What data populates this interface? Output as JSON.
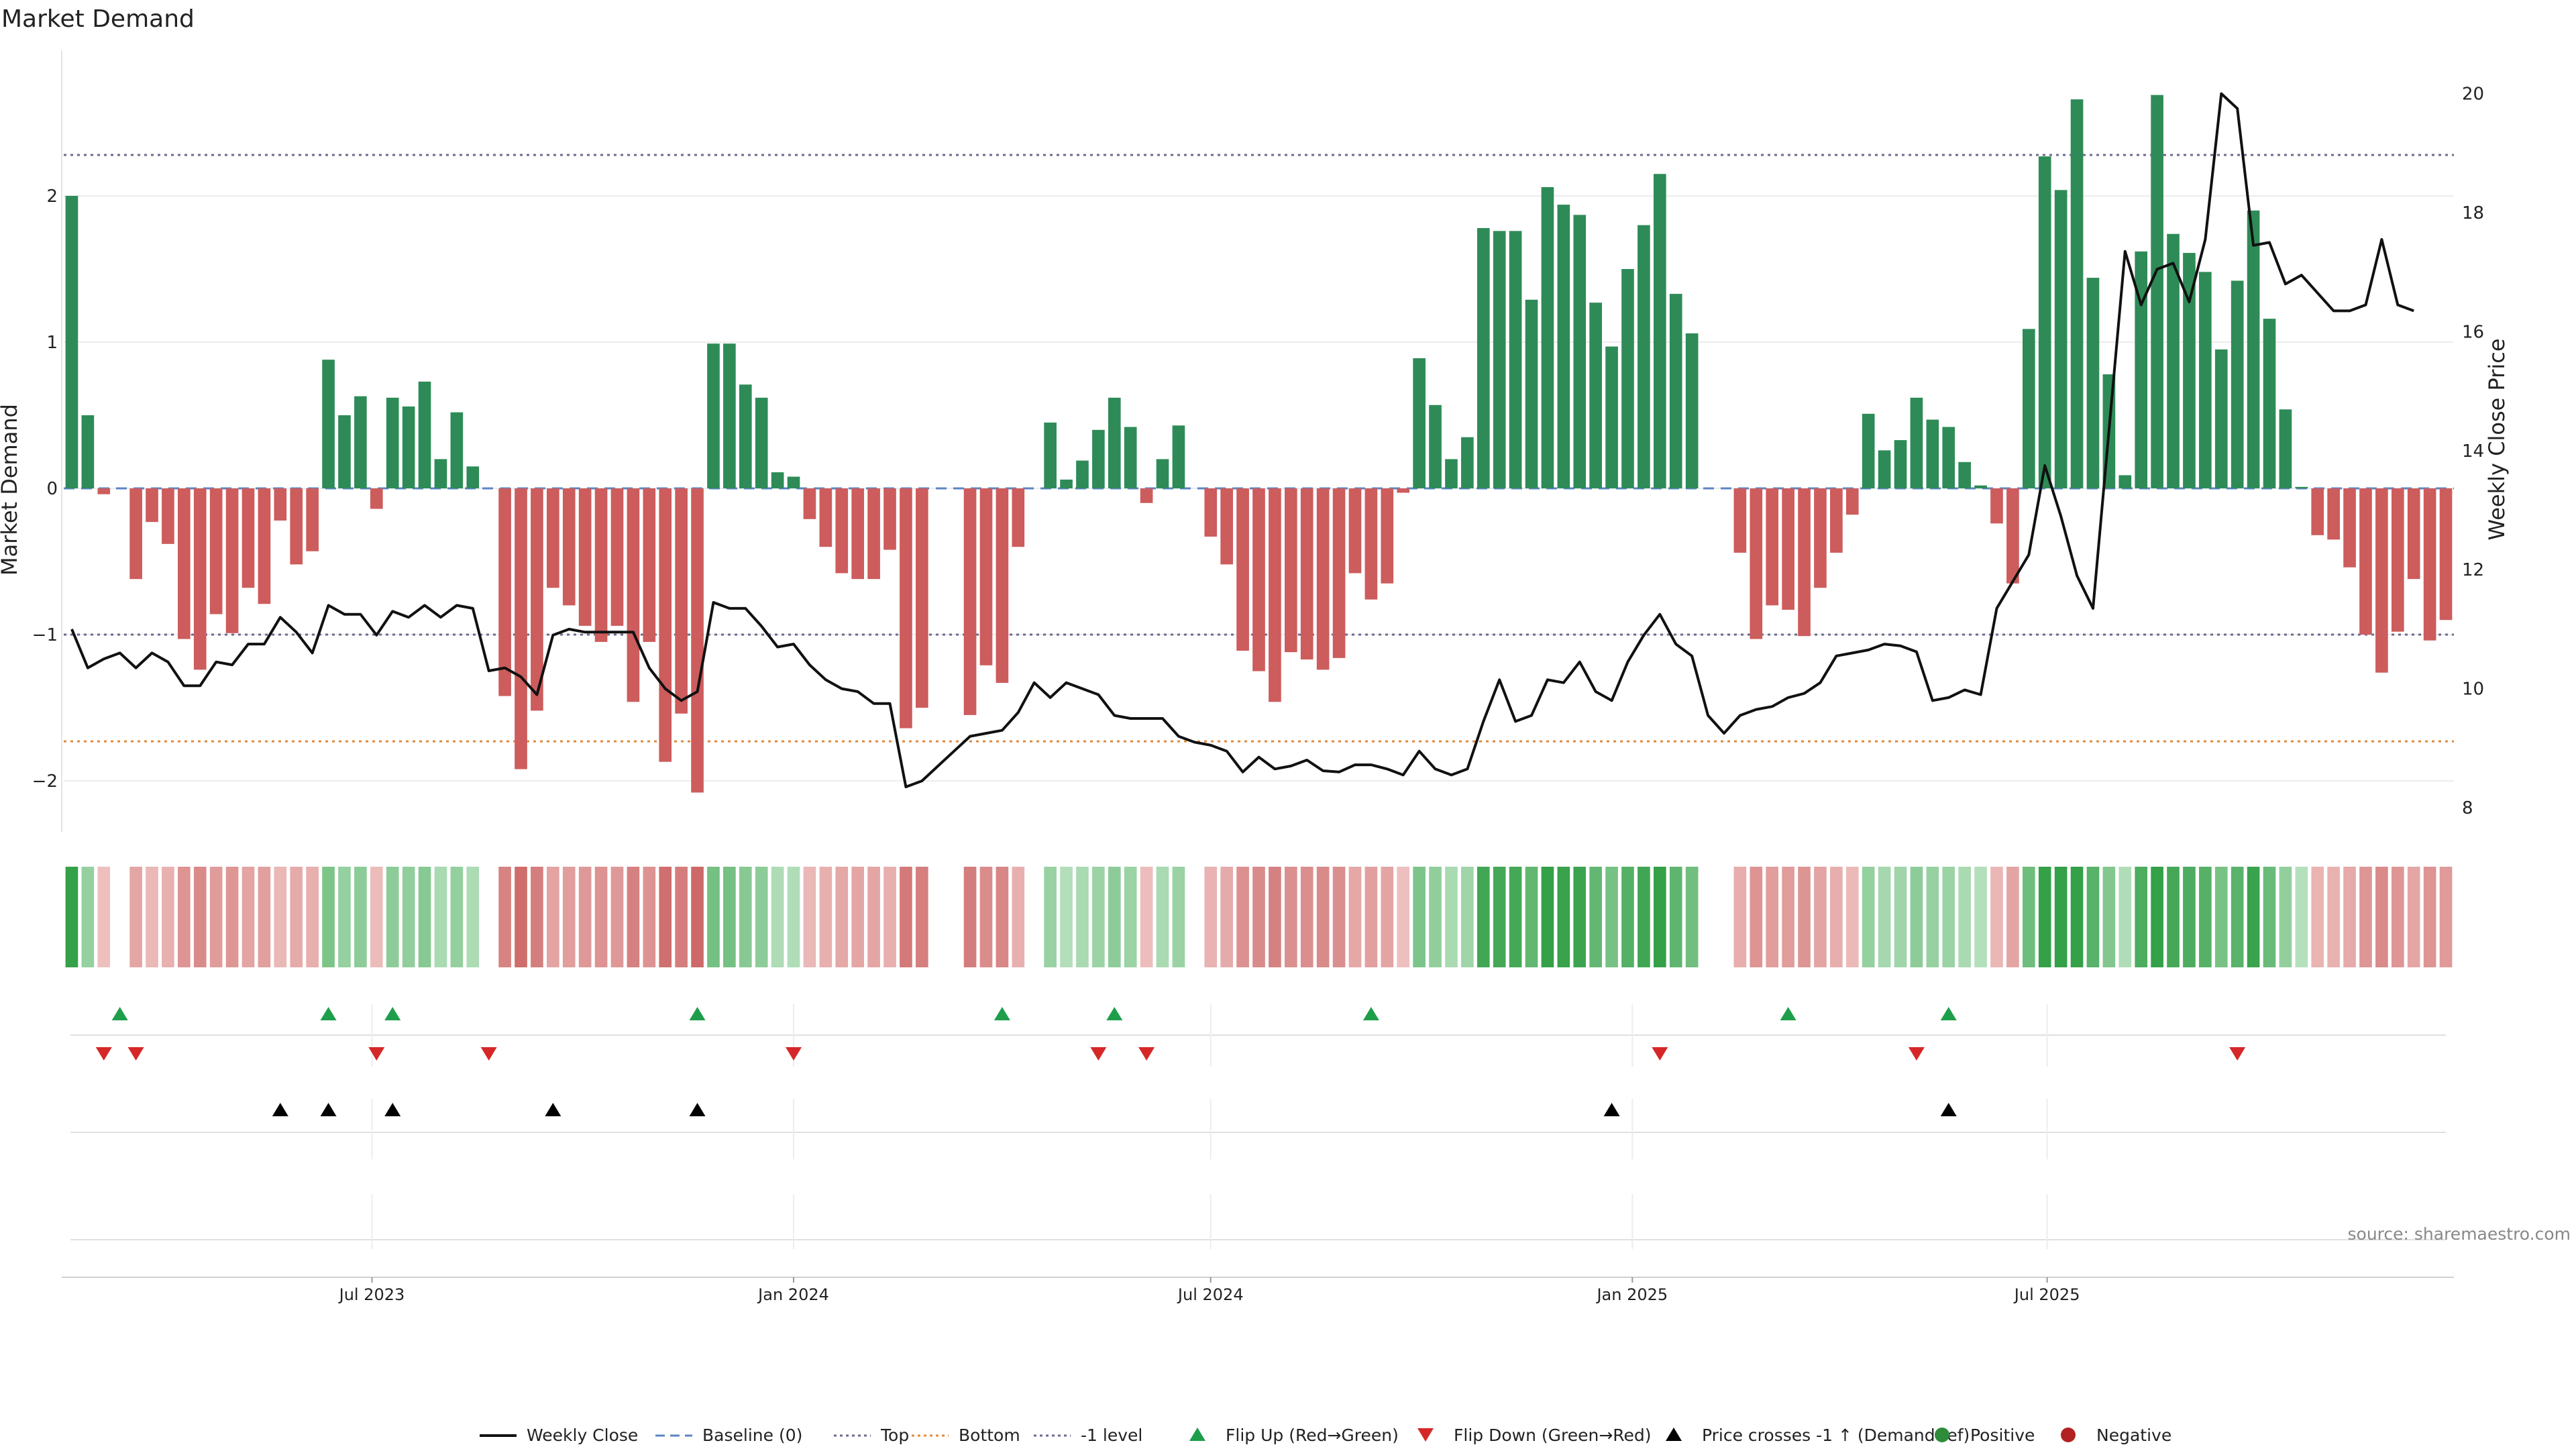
{
  "title": "Market Demand",
  "source": "source: sharemaestro.com",
  "chart_data": {
    "type": "bar",
    "ylabel": "Market Demand",
    "ylabel_right": "Weekly Close Price",
    "ylim": [
      -2.35,
      3.0
    ],
    "ylim_right": [
      7.7,
      21.0
    ],
    "yticks": [
      "−2",
      "−1",
      "0",
      "1",
      "2"
    ],
    "yticks_right": [
      "8",
      "10",
      "12",
      "14",
      "16",
      "18",
      "20"
    ],
    "x_start": "2023-02-20",
    "x_months": [
      {
        "label": "Jul 2023",
        "date": "2023-07-01"
      },
      {
        "label": "Jan 2024",
        "date": "2024-01-01"
      },
      {
        "label": "Jul 2024",
        "date": "2024-07-01"
      },
      {
        "label": "Jan 2025",
        "date": "2025-01-01"
      },
      {
        "label": "Jul 2025",
        "date": "2025-07-01"
      }
    ],
    "levels": {
      "top": 2.28,
      "bottom": -1.73,
      "minus_one": -1.0,
      "baseline": 0
    },
    "demand": [
      2.0,
      0.5,
      -0.04,
      0,
      -0.62,
      -0.23,
      -0.38,
      -1.03,
      -1.24,
      -0.86,
      -0.99,
      -0.68,
      -0.79,
      -0.22,
      -0.52,
      -0.43,
      0.88,
      0.5,
      0.63,
      -0.14,
      0.62,
      0.56,
      0.73,
      0.2,
      0.52,
      0.15,
      0,
      -1.42,
      -1.92,
      -1.52,
      -0.68,
      -0.8,
      -0.94,
      -1.05,
      -0.94,
      -1.46,
      -1.05,
      -1.87,
      -1.54,
      -2.08,
      0.99,
      0.99,
      0.71,
      0.62,
      0.11,
      0.08,
      -0.21,
      -0.4,
      -0.58,
      -0.62,
      -0.62,
      -0.42,
      -1.64,
      -1.5,
      0,
      0,
      -1.55,
      -1.21,
      -1.33,
      -0.4,
      0,
      0.45,
      0.06,
      0.19,
      0.4,
      0.62,
      0.42,
      -0.1,
      0.2,
      0.43,
      0,
      -0.33,
      -0.52,
      -1.11,
      -1.25,
      -1.46,
      -1.12,
      -1.17,
      -1.24,
      -1.16,
      -0.58,
      -0.76,
      -0.65,
      -0.03,
      0.89,
      0.57,
      0.2,
      0.35,
      1.78,
      1.76,
      1.76,
      1.29,
      2.06,
      1.94,
      1.87,
      1.27,
      0.97,
      1.5,
      1.8,
      2.15,
      1.33,
      1.06,
      0,
      0,
      -0.44,
      -1.03,
      -0.8,
      -0.83,
      -1.01,
      -0.68,
      -0.44,
      -0.18,
      0.51,
      0.26,
      0.33,
      0.62,
      0.47,
      0.42,
      0.18,
      0.02,
      -0.24,
      -0.65,
      1.09,
      2.27,
      2.04,
      2.66,
      1.44,
      0.78,
      0.09,
      1.62,
      2.69,
      1.74,
      1.61,
      1.48,
      0.95,
      1.42,
      1.9,
      1.16,
      0.54,
      0.01,
      -0.32,
      -0.35,
      -0.54,
      -1.0,
      -1.26,
      -0.98,
      -0.62,
      -1.04,
      -0.9
    ],
    "weekly_close": [
      11.0,
      10.35,
      10.5,
      10.6,
      10.35,
      10.6,
      10.45,
      10.05,
      10.05,
      10.45,
      10.4,
      10.75,
      10.75,
      11.2,
      10.95,
      10.6,
      11.4,
      11.25,
      11.25,
      10.9,
      11.3,
      11.2,
      11.4,
      11.2,
      11.4,
      11.35,
      10.3,
      10.35,
      10.2,
      9.9,
      10.9,
      11.0,
      10.95,
      10.95,
      10.95,
      10.95,
      10.35,
      10.0,
      9.8,
      9.95,
      11.45,
      11.35,
      11.35,
      11.05,
      10.7,
      10.75,
      10.4,
      10.15,
      10.0,
      9.95,
      9.75,
      9.75,
      8.35,
      8.45,
      8.7,
      8.95,
      9.2,
      9.25,
      9.3,
      9.6,
      10.1,
      9.85,
      10.1,
      10.0,
      9.9,
      9.55,
      9.5,
      9.5,
      9.5,
      9.2,
      9.1,
      9.05,
      8.95,
      8.6,
      8.85,
      8.65,
      8.7,
      8.8,
      8.62,
      8.6,
      8.72,
      8.72,
      8.65,
      8.55,
      8.95,
      8.65,
      8.55,
      8.65,
      9.45,
      10.15,
      9.45,
      9.55,
      10.15,
      10.1,
      10.45,
      9.95,
      9.8,
      10.45,
      10.9,
      11.25,
      10.75,
      10.55,
      9.55,
      9.25,
      9.55,
      9.65,
      9.7,
      9.85,
      9.92,
      10.1,
      10.55,
      10.6,
      10.65,
      10.75,
      10.72,
      10.62,
      9.8,
      9.85,
      9.98,
      9.9,
      11.35,
      11.8,
      12.25,
      13.75,
      12.9,
      11.9,
      11.35,
      14.35,
      17.35,
      16.45,
      17.05,
      17.15,
      16.5,
      17.55,
      20.0,
      19.75,
      17.45,
      17.5,
      16.8,
      16.95,
      16.65,
      16.35,
      16.35,
      16.45,
      17.55,
      16.45,
      16.35
    ],
    "flip_up_weeks": [
      3,
      16,
      20,
      39,
      58,
      65,
      81,
      107,
      117
    ],
    "flip_down_weeks": [
      2,
      4,
      19,
      26,
      45,
      64,
      67,
      99,
      115,
      135
    ],
    "price_cross_weeks": [
      13,
      16,
      20,
      30,
      39,
      96,
      117
    ],
    "legend": [
      {
        "label": "Weekly Close",
        "color": "#111111",
        "kind": "line"
      },
      {
        "label": "Baseline (0)",
        "color": "#5b84c4",
        "kind": "dash"
      },
      {
        "label": "Top",
        "color": "#6a6a8e",
        "kind": "dot"
      },
      {
        "label": "Bottom",
        "color": "#e08a3c",
        "kind": "dot"
      },
      {
        "label": "-1 level",
        "color": "#6a6a8e",
        "kind": "dot"
      },
      {
        "label": "Flip Up (Red→Green)",
        "color": "#1e9e4a",
        "kind": "tri-up"
      },
      {
        "label": "Flip Down (Green→Red)",
        "color": "#d62728",
        "kind": "tri-down"
      },
      {
        "label": "Price crosses -1 ↑ (Demand ref)",
        "color": "#000000",
        "kind": "tri-up"
      },
      {
        "label": "Positive",
        "color": "#2e8b3a",
        "kind": "dot-marker"
      },
      {
        "label": "Negative",
        "color": "#b22222",
        "kind": "dot-marker"
      }
    ],
    "colors": {
      "positive": "#2e8b57",
      "negative": "#cd5c5c",
      "line": "#111111",
      "baseline": "#5b84c4",
      "top": "#6a6a8e",
      "bottom": "#e08a3c"
    }
  }
}
